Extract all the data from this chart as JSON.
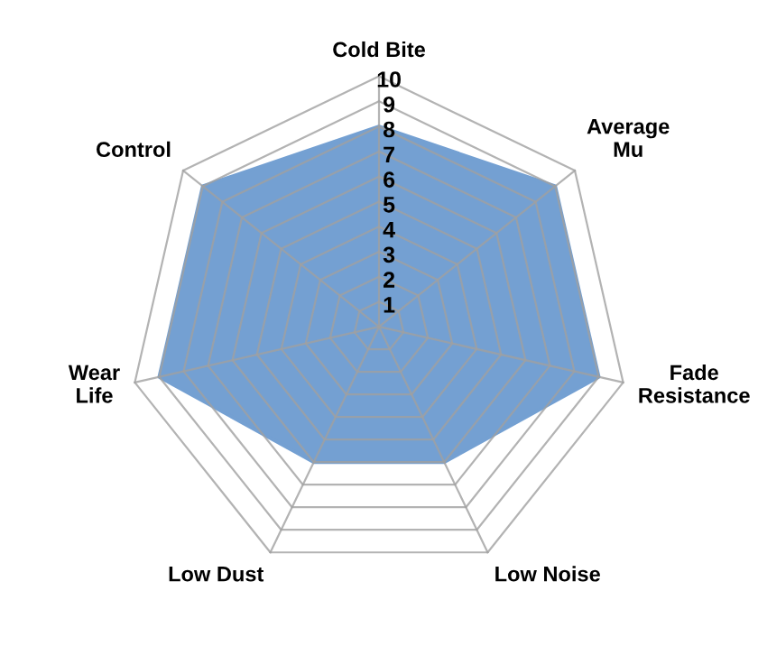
{
  "chart_data": {
    "type": "radar",
    "categories": [
      "Cold Bite",
      "Average\nMu",
      "Fade\nResistance",
      "Low Noise",
      "Low Dust",
      "Wear\nLife",
      "Control"
    ],
    "series": [
      {
        "color": "#2a6ebb",
        "values": [
          8,
          9,
          9,
          6,
          6,
          9,
          9
        ]
      }
    ],
    "ylim": [
      0,
      10
    ],
    "yticks": [
      1,
      2,
      3,
      4,
      5,
      6,
      7,
      8,
      9,
      10
    ],
    "grid": true
  }
}
